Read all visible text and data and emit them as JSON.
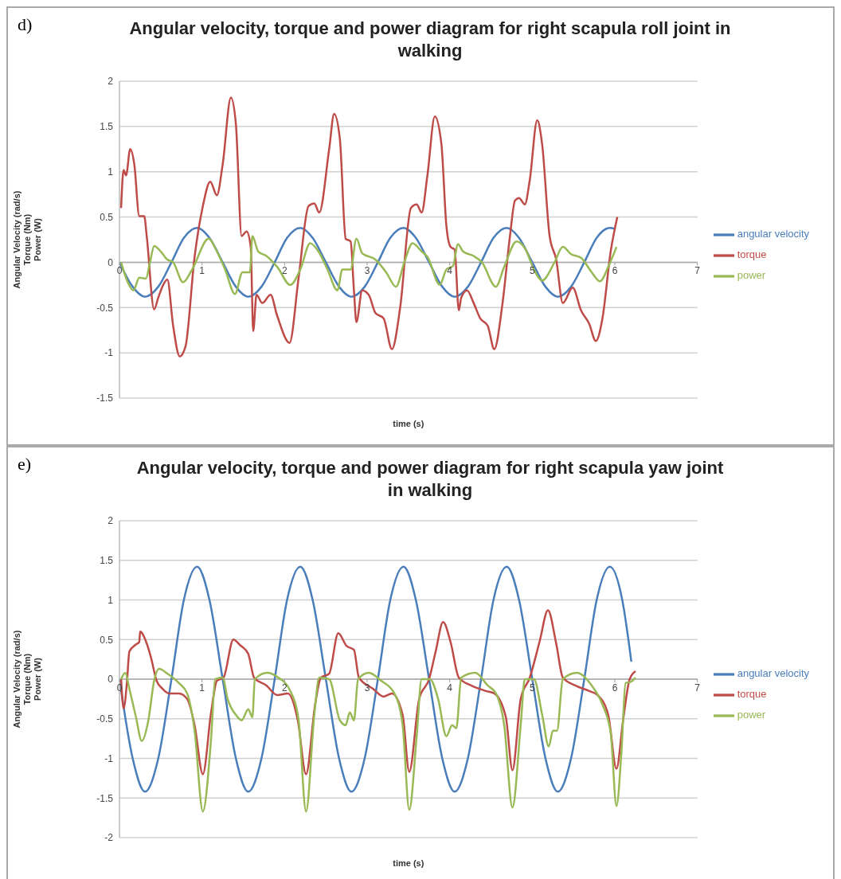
{
  "chart_data": [
    {
      "type": "line",
      "title": "Angular velocity, torque and power diagram for  right scapula roll joint in walking",
      "xlabel": "time (s)",
      "ylabel": "Angular Velocity (rad/s)\nTorque (Nm)\nPower (W)",
      "annotations": [
        "d)"
      ],
      "xlim": [
        0,
        7
      ],
      "xticks": [
        0,
        1,
        2,
        3,
        4,
        5,
        6,
        7
      ],
      "ylim": [
        -1.5,
        2
      ],
      "yticks": [
        -1.5,
        -1,
        -0.5,
        0,
        0.5,
        1,
        1.5,
        2
      ],
      "grid": "y",
      "legend": "right",
      "series": [
        {
          "name": "angular velocity",
          "color": "#4a7ebb",
          "x": [
            0,
            0.16,
            0.31,
            0.47,
            0.63,
            0.78,
            0.94,
            1.09,
            1.25,
            1.41,
            1.56,
            1.72,
            1.88,
            2.03,
            2.19,
            2.34,
            2.5,
            2.66,
            2.81,
            2.97,
            3.13,
            3.28,
            3.44,
            3.59,
            3.75,
            3.91,
            4.06,
            4.22,
            4.38,
            4.53,
            4.69,
            4.84,
            5,
            5.16,
            5.31,
            5.47,
            5.63,
            5.78,
            5.94,
            6
          ],
          "values": [
            0,
            -0.27,
            -0.38,
            -0.27,
            0,
            0.27,
            0.38,
            0.27,
            0,
            -0.27,
            -0.38,
            -0.27,
            0,
            0.27,
            0.38,
            0.27,
            0,
            -0.27,
            -0.38,
            -0.27,
            0,
            0.27,
            0.38,
            0.27,
            0,
            -0.27,
            -0.38,
            -0.27,
            0,
            0.27,
            0.38,
            0.27,
            0,
            -0.27,
            -0.38,
            -0.27,
            0,
            0.27,
            0.38,
            0.37
          ]
        },
        {
          "name": "torque",
          "color": "#be4b48",
          "x": [
            0.02,
            0.05,
            0.08,
            0.13,
            0.18,
            0.24,
            0.3,
            0.33,
            0.42,
            0.47,
            0.53,
            0.58,
            0.65,
            0.73,
            0.8,
            0.91,
            1.01,
            1.1,
            1.18,
            1.25,
            1.35,
            1.41,
            1.48,
            1.54,
            1.59,
            1.62,
            1.66,
            1.73,
            1.83,
            1.91,
            2.06,
            2.17,
            2.29,
            2.36,
            2.42,
            2.54,
            2.6,
            2.67,
            2.74,
            2.8,
            2.84,
            2.87,
            2.94,
            3.02,
            3.1,
            3.2,
            3.3,
            3.4,
            3.53,
            3.6,
            3.66,
            3.73,
            3.82,
            3.9,
            3.96,
            4.01,
            4.06,
            4.11,
            4.14,
            4.21,
            4.29,
            4.37,
            4.46,
            4.54,
            4.64,
            4.73,
            4.79,
            4.84,
            4.91,
            4.97,
            5.06,
            5.12,
            5.21,
            5.29,
            5.37,
            5.49,
            5.59,
            5.69,
            5.77,
            5.85,
            5.95,
            6.03
          ],
          "values": [
            0.6,
            1.02,
            0.96,
            1.25,
            1.08,
            0.51,
            0.51,
            0.29,
            -0.52,
            -0.39,
            -0.25,
            -0.19,
            -0.7,
            -1.04,
            -0.93,
            0.06,
            0.62,
            0.89,
            0.74,
            1.08,
            1.82,
            1.53,
            0.29,
            0.34,
            0.17,
            -0.76,
            -0.36,
            -0.45,
            -0.36,
            -0.59,
            -0.89,
            -0.17,
            0.62,
            0.65,
            0.55,
            1.25,
            1.64,
            1.36,
            0.26,
            0.23,
            -0.31,
            -0.66,
            -0.31,
            -0.36,
            -0.56,
            -0.62,
            -0.96,
            -0.5,
            0.6,
            0.64,
            0.55,
            0.96,
            1.61,
            1.3,
            0.4,
            0.17,
            0.14,
            -0.53,
            -0.39,
            -0.31,
            -0.45,
            -0.62,
            -0.7,
            -0.96,
            -0.45,
            0.29,
            0.68,
            0.71,
            0.64,
            0.91,
            1.57,
            1.3,
            0.29,
            0.03,
            -0.45,
            -0.28,
            -0.53,
            -0.68,
            -0.87,
            -0.62,
            0.12,
            0.5
          ]
        },
        {
          "name": "power",
          "color": "#98b954",
          "x": [
            0.02,
            0.1,
            0.17,
            0.24,
            0.32,
            0.37,
            0.42,
            0.5,
            0.58,
            0.65,
            0.77,
            0.88,
            1.08,
            1.18,
            1.28,
            1.4,
            1.49,
            1.58,
            1.61,
            1.68,
            1.78,
            1.91,
            2.07,
            2.19,
            2.31,
            2.41,
            2.52,
            2.64,
            2.7,
            2.8,
            2.87,
            2.94,
            3.1,
            3.23,
            3.35,
            3.45,
            3.55,
            3.66,
            3.73,
            3.88,
            3.96,
            4.04,
            4.1,
            4.16,
            4.29,
            4.39,
            4.56,
            4.66,
            4.81,
            4.92,
            5.02,
            5.12,
            5.27,
            5.37,
            5.47,
            5.59,
            5.72,
            5.82,
            5.92,
            6.02
          ],
          "values": [
            0,
            -0.22,
            -0.31,
            -0.17,
            -0.18,
            0,
            0.18,
            0.12,
            0.03,
            0,
            -0.22,
            -0.08,
            0.26,
            0.12,
            -0.08,
            -0.35,
            -0.11,
            -0.11,
            0.29,
            0.12,
            0.07,
            -0.05,
            -0.25,
            -0.08,
            0.21,
            0.12,
            -0.08,
            -0.31,
            -0.08,
            -0.08,
            0.26,
            0.1,
            0.03,
            -0.11,
            -0.27,
            0,
            0.21,
            0.12,
            0.06,
            -0.25,
            -0.08,
            -0.04,
            0.2,
            0.12,
            0.07,
            0,
            -0.27,
            -0.05,
            0.23,
            0.14,
            -0.08,
            -0.2,
            0,
            0.17,
            0.09,
            0.05,
            -0.11,
            -0.21,
            -0.05,
            0.17
          ]
        }
      ]
    },
    {
      "type": "line",
      "title": "Angular velocity, torque and power diagram for  right scapula yaw joint in walking",
      "xlabel": "time (s)",
      "ylabel": "Angular Velocity (rad/s)\nTorque (Nm)\nPower (W)",
      "annotations": [
        "e)"
      ],
      "xlim": [
        0,
        7
      ],
      "xticks": [
        0,
        1,
        2,
        3,
        4,
        5,
        6,
        7
      ],
      "ylim": [
        -2,
        2
      ],
      "yticks": [
        -2,
        -1.5,
        -1,
        -0.5,
        0,
        0.5,
        1,
        1.5,
        2
      ],
      "grid": "y",
      "legend": "right",
      "series": [
        {
          "name": "angular velocity",
          "color": "#4a7ebb",
          "x": [
            0,
            0.16,
            0.31,
            0.47,
            0.63,
            0.78,
            0.94,
            1.09,
            1.25,
            1.41,
            1.56,
            1.72,
            1.88,
            2.03,
            2.19,
            2.34,
            2.5,
            2.66,
            2.81,
            2.97,
            3.13,
            3.28,
            3.44,
            3.59,
            3.75,
            3.91,
            4.06,
            4.22,
            4.38,
            4.53,
            4.69,
            4.84,
            5,
            5.16,
            5.31,
            5.47,
            5.63,
            5.78,
            5.94,
            6.09,
            6.2
          ],
          "values": [
            0,
            -1,
            -1.42,
            -1,
            0,
            1,
            1.42,
            1,
            0,
            -1,
            -1.42,
            -1,
            0,
            1,
            1.42,
            1,
            0,
            -1,
            -1.42,
            -1,
            0,
            1,
            1.42,
            1,
            0,
            -1,
            -1.42,
            -1,
            0,
            1,
            1.42,
            1,
            0,
            -1,
            -1.42,
            -1,
            0,
            1,
            1.42,
            1,
            0.22
          ]
        },
        {
          "name": "torque",
          "color": "#be4b48",
          "x": [
            0.02,
            0.05,
            0.09,
            0.12,
            0.19,
            0.24,
            0.25,
            0.32,
            0.38,
            0.45,
            0.52,
            0.6,
            0.72,
            0.82,
            0.91,
            1.01,
            1.11,
            1.18,
            1.26,
            1.38,
            1.46,
            1.56,
            1.63,
            1.78,
            1.91,
            2.04,
            2.16,
            2.26,
            2.37,
            2.44,
            2.54,
            2.65,
            2.75,
            2.84,
            2.9,
            3.07,
            3.2,
            3.3,
            3.43,
            3.51,
            3.63,
            3.75,
            3.83,
            3.92,
            4.01,
            4.11,
            4.26,
            4.44,
            4.54,
            4.68,
            4.76,
            4.86,
            4.97,
            5.09,
            5.19,
            5.29,
            5.37,
            5.52,
            5.69,
            5.79,
            5.92,
            6.02,
            6.1,
            6.18,
            6.25
          ],
          "values": [
            0,
            -0.37,
            -0.05,
            0.35,
            0.43,
            0.47,
            0.6,
            0.48,
            0.28,
            -0.02,
            -0.12,
            -0.18,
            -0.18,
            -0.25,
            -0.58,
            -1.2,
            -0.42,
            -0.02,
            0.02,
            0.5,
            0.43,
            0.32,
            0.02,
            -0.08,
            -0.2,
            -0.18,
            -0.52,
            -1.2,
            -0.32,
            0.02,
            0.07,
            0.58,
            0.42,
            0.37,
            0.02,
            -0.12,
            -0.22,
            -0.18,
            -0.45,
            -1.17,
            -0.25,
            0,
            0.35,
            0.72,
            0.47,
            0.02,
            -0.08,
            -0.15,
            -0.18,
            -0.48,
            -1.15,
            -0.25,
            0.02,
            0.48,
            0.87,
            0.45,
            0.02,
            -0.08,
            -0.15,
            -0.2,
            -0.45,
            -1.13,
            -0.52,
            0,
            0.1
          ]
        },
        {
          "name": "power",
          "color": "#98b954",
          "x": [
            0.02,
            0.07,
            0.12,
            0.2,
            0.27,
            0.35,
            0.42,
            0.48,
            0.58,
            0.72,
            0.82,
            0.91,
            1.01,
            1.11,
            1.16,
            1.25,
            1.31,
            1.41,
            1.48,
            1.56,
            1.61,
            1.64,
            1.79,
            1.91,
            2.07,
            2.17,
            2.26,
            2.36,
            2.42,
            2.54,
            2.67,
            2.74,
            2.79,
            2.84,
            2.89,
            3.02,
            3.17,
            3.33,
            3.43,
            3.51,
            3.6,
            3.66,
            3.76,
            3.86,
            3.96,
            4.03,
            4.08,
            4.14,
            4.31,
            4.46,
            4.56,
            4.66,
            4.76,
            4.86,
            4.91,
            5.02,
            5.12,
            5.2,
            5.25,
            5.3,
            5.37,
            5.54,
            5.72,
            5.85,
            5.95,
            6.02,
            6.08,
            6.13,
            6.2,
            6.25
          ],
          "values": [
            0,
            0.08,
            -0.12,
            -0.48,
            -0.78,
            -0.52,
            -0.02,
            0.13,
            0.07,
            -0.05,
            -0.18,
            -0.65,
            -1.67,
            -0.75,
            0,
            0.02,
            -0.25,
            -0.45,
            -0.52,
            -0.38,
            -0.48,
            0,
            0.08,
            0.03,
            -0.15,
            -0.52,
            -1.67,
            -0.45,
            0.02,
            0,
            -0.52,
            -0.58,
            -0.42,
            -0.52,
            0,
            0.08,
            -0.02,
            -0.18,
            -0.58,
            -1.65,
            -0.72,
            0,
            0,
            -0.25,
            -0.72,
            -0.58,
            -0.62,
            0.02,
            0.08,
            -0.08,
            -0.18,
            -0.58,
            -1.62,
            -0.58,
            0,
            0,
            -0.45,
            -0.85,
            -0.65,
            -0.65,
            0,
            0.08,
            -0.08,
            -0.32,
            -0.68,
            -1.6,
            -0.92,
            -0.05,
            -0.03,
            0.02
          ]
        }
      ]
    }
  ]
}
